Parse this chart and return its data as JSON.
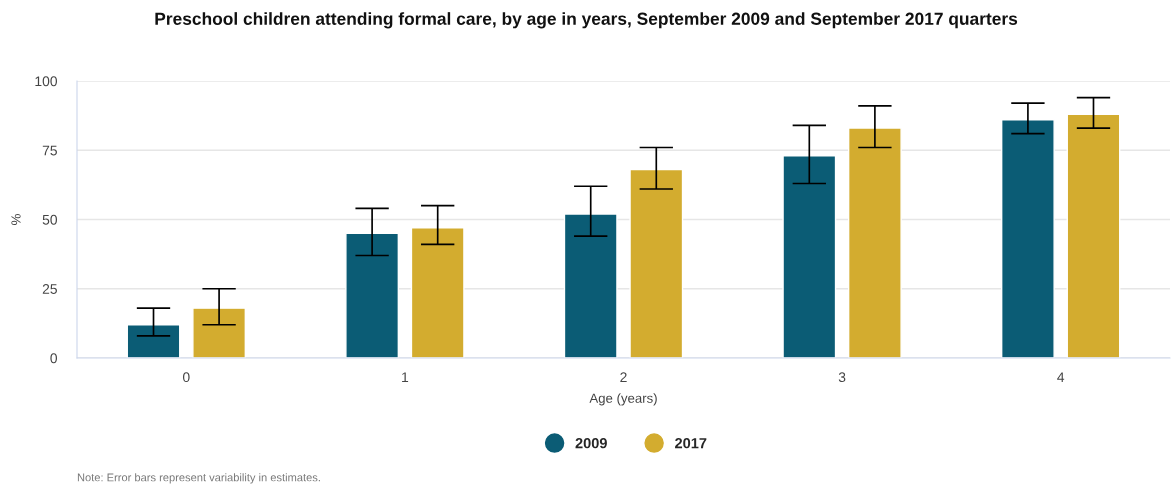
{
  "chart_data": {
    "type": "bar",
    "title": "Preschool children attending formal care, by age in years, September 2009 and September 2017 quarters",
    "xlabel": "Age (years)",
    "ylabel": "%",
    "categories": [
      "0",
      "1",
      "2",
      "3",
      "4"
    ],
    "series": [
      {
        "name": "2009",
        "color": "#0b5c75",
        "values": [
          12,
          45,
          52,
          73,
          86
        ],
        "errors": [
          [
            8,
            18
          ],
          [
            37,
            54
          ],
          [
            44,
            62
          ],
          [
            63,
            84
          ],
          [
            81,
            92
          ]
        ]
      },
      {
        "name": "2017",
        "color": "#d3ac2f",
        "values": [
          18,
          47,
          68,
          83,
          88
        ],
        "errors": [
          [
            12,
            25
          ],
          [
            41,
            55
          ],
          [
            61,
            76
          ],
          [
            76,
            91
          ],
          [
            83,
            94
          ]
        ]
      }
    ],
    "ylim": [
      0,
      100
    ],
    "yticks": [
      0,
      25,
      50,
      75,
      100
    ],
    "grid": "y",
    "legend": "bottom",
    "annotations": [
      "Note: Error bars represent variability in estimates."
    ]
  }
}
